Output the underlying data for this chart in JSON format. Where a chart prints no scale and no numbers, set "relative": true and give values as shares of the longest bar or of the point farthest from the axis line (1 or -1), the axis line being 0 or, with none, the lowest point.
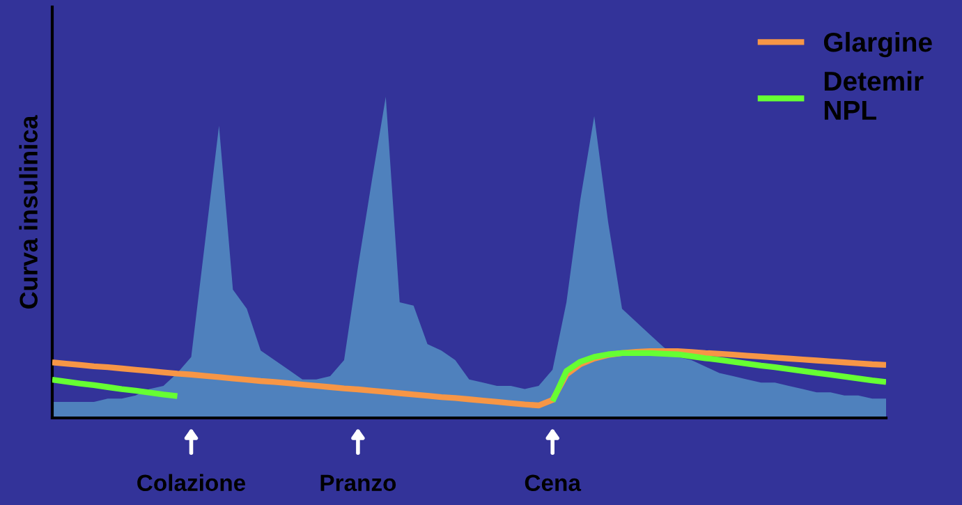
{
  "chart_data": {
    "type": "area",
    "relative": true,
    "ylabel": "Curva insulinica",
    "tick_labels": "x",
    "legend": "top right",
    "grid": false,
    "categories": [
      null,
      null,
      null,
      null,
      null,
      null,
      null,
      null,
      null,
      null,
      "Colazione",
      null,
      null,
      null,
      null,
      null,
      null,
      null,
      null,
      null,
      null,
      null,
      "Pranzo",
      null,
      null,
      null,
      null,
      null,
      null,
      null,
      null,
      null,
      null,
      null,
      null,
      null,
      "Cena",
      null,
      null,
      null,
      null,
      null,
      null,
      null,
      null,
      null,
      null,
      null,
      null,
      null,
      null,
      null,
      null,
      null,
      null,
      null,
      null,
      null,
      null,
      null,
      null
    ],
    "series": [
      {
        "color": "#4f81bd",
        "values": [
          0.05,
          0.05,
          0.05,
          0.05,
          0.06,
          0.06,
          0.07,
          0.09,
          0.1,
          0.14,
          0.19,
          0.55,
          0.91,
          0.4,
          0.34,
          0.21,
          0.18,
          0.15,
          0.12,
          0.12,
          0.13,
          0.18,
          0.47,
          0.74,
          1,
          0.36,
          0.35,
          0.23,
          0.21,
          0.18,
          0.12,
          0.11,
          0.1,
          0.1,
          0.09,
          0.1,
          0.15,
          0.36,
          0.68,
          0.94,
          0.61,
          0.34,
          0.3,
          0.26,
          0.22,
          0.19,
          0.18,
          0.16,
          0.14,
          0.13,
          0.12,
          0.11,
          0.11,
          0.1,
          0.09,
          0.08,
          0.08,
          0.07,
          0.07,
          0.06,
          0.06
        ]
      },
      {
        "type": "line",
        "name": "Glargine",
        "color": "#f79646",
        "values": [
          0.173,
          0.169,
          0.165,
          0.161,
          0.158,
          0.154,
          0.15,
          0.146,
          0.142,
          0.138,
          0.135,
          0.131,
          0.127,
          0.123,
          0.119,
          0.115,
          0.112,
          0.108,
          0.104,
          0.1,
          0.096,
          0.092,
          0.089,
          0.085,
          0.081,
          0.077,
          0.073,
          0.069,
          0.065,
          0.062,
          0.058,
          0.054,
          0.05,
          0.046,
          0.042,
          0.039,
          0.056,
          0.135,
          0.167,
          0.185,
          0.196,
          0.202,
          0.206,
          0.208,
          0.208,
          0.208,
          0.205,
          0.202,
          0.2,
          0.197,
          0.194,
          0.191,
          0.188,
          0.185,
          0.182,
          0.179,
          0.176,
          0.173,
          0.17,
          0.167,
          0.165
        ]
      },
      {
        "type": "line",
        "name": "Detemir\nNPL",
        "color": "#66ff33",
        "values": [
          0.119,
          0.113,
          0.107,
          0.102,
          0.096,
          0.09,
          0.085,
          0.079,
          0.073,
          0.068,
          null,
          null,
          null,
          null,
          null,
          null,
          null,
          null,
          null,
          null,
          null,
          null,
          null,
          null,
          null,
          null,
          null,
          null,
          null,
          null,
          null,
          null,
          null,
          null,
          null,
          null,
          0.052,
          0.146,
          0.175,
          0.19,
          0.198,
          0.202,
          0.202,
          0.202,
          0.2,
          0.198,
          0.192,
          0.186,
          0.181,
          0.175,
          0.169,
          0.163,
          0.158,
          0.152,
          0.146,
          0.14,
          0.135,
          0.129,
          0.123,
          0.117,
          0.112
        ]
      }
    ]
  }
}
